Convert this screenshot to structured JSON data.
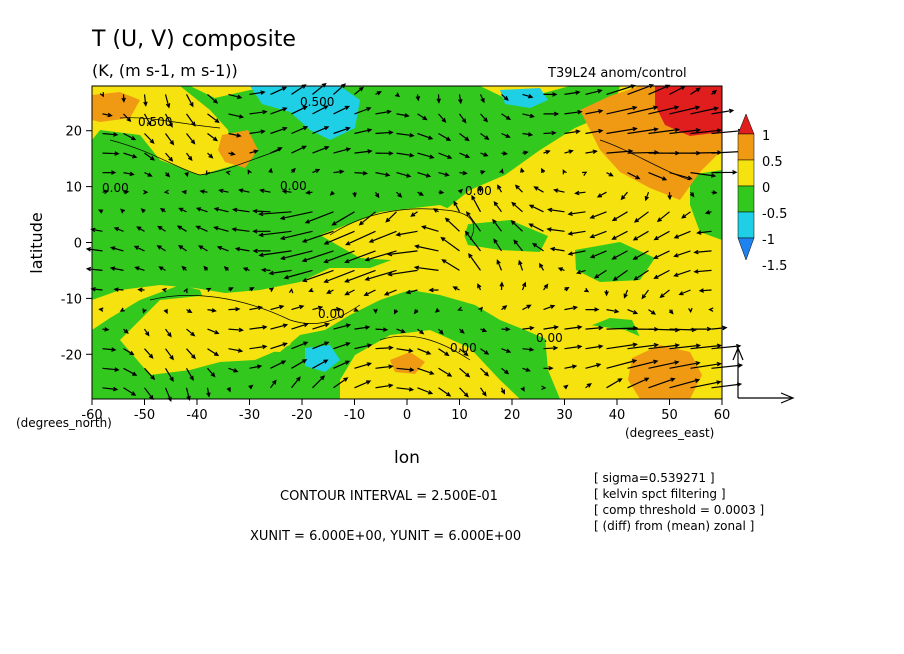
{
  "chart_data": {
    "type": "heatmap",
    "title": "T (U, V) composite",
    "subtitle": "(K, (m s-1, m s-1))",
    "run_label": "T39L24 anom/control",
    "xlabel": "lon",
    "ylabel": "latitude",
    "x_unit_label": "(degrees_east)",
    "y_unit_label": "(degrees_north)",
    "xlim": [
      -60,
      60
    ],
    "ylim": [
      -28,
      28
    ],
    "x_ticks": [
      "-60",
      "-50",
      "-40",
      "-30",
      "-20",
      "-10",
      "0",
      "10",
      "20",
      "30",
      "40",
      "50",
      "60"
    ],
    "x_tick_values": [
      -60,
      -50,
      -40,
      -30,
      -20,
      -10,
      0,
      10,
      20,
      30,
      40,
      50,
      60
    ],
    "y_ticks": [
      "20",
      "10",
      "0",
      "-10",
      "-20"
    ],
    "y_tick_values": [
      20,
      10,
      0,
      -10,
      -20
    ],
    "colorbar": {
      "labels": [
        "1",
        "0.5",
        "0",
        "-0.5",
        "-1",
        "-1.5"
      ],
      "colors": [
        "#e01e1e",
        "#f09a14",
        "#f5e20e",
        "#32c81e",
        "#1ecfe6",
        "#1e82f0"
      ]
    },
    "contour_labels": [
      "0.500",
      "0.500",
      "0.00",
      "0.00",
      "0.00",
      "0.00",
      "0.00",
      "0.00"
    ],
    "contour_interval": "CONTOUR INTERVAL = 2.500E-01",
    "units_text": "XUNIT = 6.000E+00, YUNIT = 6.000E+00",
    "notes": [
      "[ sigma=0.539271 ]",
      "[ kelvin spct filtering ]",
      "[ comp threshold = 0.0003 ]",
      "[ (diff) from (mean) zonal ]"
    ],
    "grid": false,
    "vector_field": true
  }
}
